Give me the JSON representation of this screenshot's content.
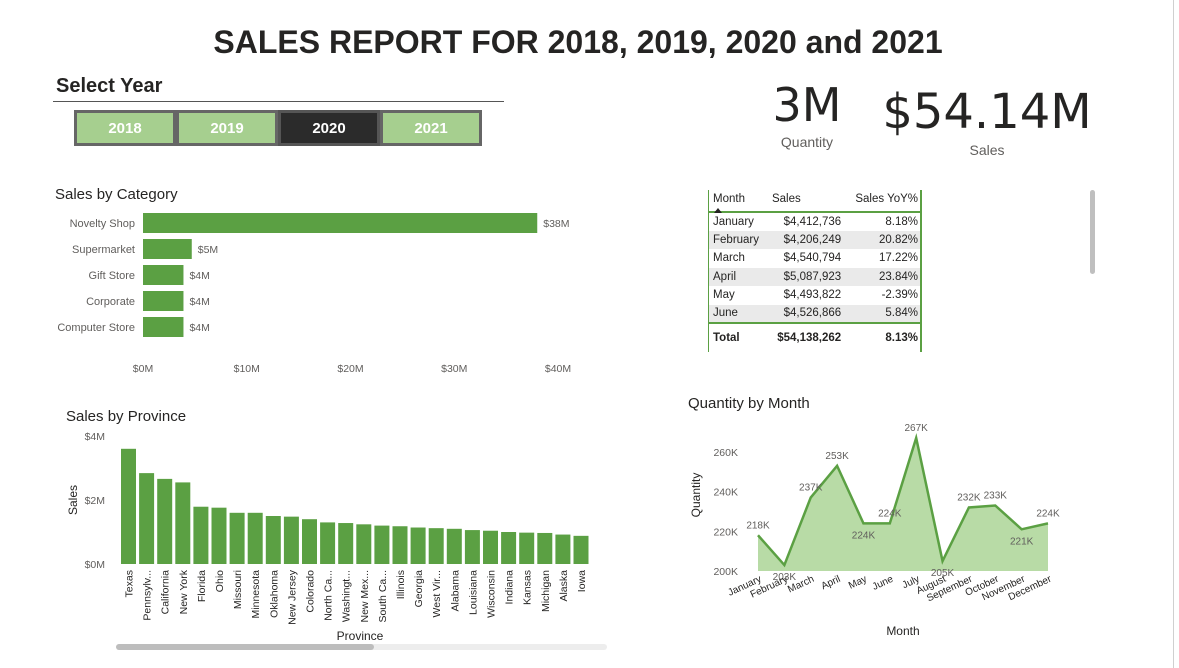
{
  "page": {
    "title": "SALES REPORT FOR 2018, 2019, 2020 and 2021"
  },
  "slicer": {
    "title": "Select Year",
    "years": [
      {
        "label": "2018",
        "selected": false
      },
      {
        "label": "2019",
        "selected": false
      },
      {
        "label": "2020",
        "selected": true
      },
      {
        "label": "2021",
        "selected": false
      }
    ]
  },
  "kpis": {
    "quantity": {
      "value": "3M",
      "label": "Quantity"
    },
    "sales": {
      "value": "$54.14M",
      "label": "Sales"
    }
  },
  "colors": {
    "bar": "#5ba043",
    "area_fill": "#b8dba6",
    "line": "#5ba043",
    "selected_year": "#2b2b2b",
    "unselected_year": "#a6cf8f"
  },
  "table": {
    "columns": [
      "Month",
      "Sales",
      "Sales YoY%"
    ],
    "rows": [
      {
        "month": "January",
        "sales": "$4,412,736",
        "yoy": "8.18%"
      },
      {
        "month": "February",
        "sales": "$4,206,249",
        "yoy": "20.82%"
      },
      {
        "month": "March",
        "sales": "$4,540,794",
        "yoy": "17.22%"
      },
      {
        "month": "April",
        "sales": "$5,087,923",
        "yoy": "23.84%"
      },
      {
        "month": "May",
        "sales": "$4,493,822",
        "yoy": "-2.39%"
      },
      {
        "month": "June",
        "sales": "$4,526,866",
        "yoy": "5.84%"
      }
    ],
    "total": {
      "label": "Total",
      "sales": "$54,138,262",
      "yoy": "8.13%"
    }
  },
  "chart_data": [
    {
      "type": "bar",
      "orientation": "horizontal",
      "title": "Sales by Category",
      "categories": [
        "Novelty Shop",
        "Supermarket",
        "Gift Store",
        "Corporate",
        "Computer Store"
      ],
      "values": [
        38,
        4.7,
        3.9,
        3.9,
        3.9
      ],
      "data_labels": [
        "$38M",
        "$5M",
        "$4M",
        "$4M",
        "$4M"
      ],
      "x_ticks": [
        "$0M",
        "$10M",
        "$20M",
        "$30M",
        "$40M"
      ],
      "xlim": [
        0,
        40
      ],
      "grid": false
    },
    {
      "type": "bar",
      "title": "Sales by Province",
      "xlabel": "Province",
      "ylabel": "Sales",
      "categories": [
        "Texas",
        "Pennsylv...",
        "California",
        "New York",
        "Florida",
        "Ohio",
        "Missouri",
        "Minnesota",
        "Oklahoma",
        "New Jersey",
        "Colorado",
        "North Ca...",
        "Washingt...",
        "New Mex...",
        "South Ca...",
        "Illinois",
        "Georgia",
        "West Vir...",
        "Alabama",
        "Louisiana",
        "Wisconsin",
        "Indiana",
        "Kansas",
        "Michigan",
        "Alaska",
        "Iowa"
      ],
      "values": [
        3.6,
        2.84,
        2.66,
        2.55,
        1.79,
        1.76,
        1.6,
        1.6,
        1.5,
        1.48,
        1.4,
        1.3,
        1.28,
        1.24,
        1.2,
        1.18,
        1.14,
        1.12,
        1.1,
        1.06,
        1.04,
        1.0,
        0.98,
        0.97,
        0.92,
        0.88
      ],
      "y_ticks": [
        "$0M",
        "$2M",
        "$4M"
      ],
      "ylim": [
        0,
        4
      ],
      "grid": false
    },
    {
      "type": "area",
      "title": "Quantity by Month",
      "xlabel": "Month",
      "ylabel": "Quantity",
      "categories": [
        "January",
        "February",
        "March",
        "April",
        "May",
        "June",
        "July",
        "August",
        "September",
        "October",
        "November",
        "December"
      ],
      "values": [
        218,
        203,
        237,
        253,
        224,
        224,
        267,
        205,
        232,
        233,
        221,
        224
      ],
      "data_labels": [
        "218K",
        "203K",
        "237K",
        "253K",
        "224K",
        "224K",
        "267K",
        "205K",
        "232K",
        "233K",
        "221K",
        "224K"
      ],
      "y_ticks": [
        "200K",
        "220K",
        "240K",
        "260K"
      ],
      "ylim": [
        200,
        268
      ],
      "grid": false
    }
  ]
}
